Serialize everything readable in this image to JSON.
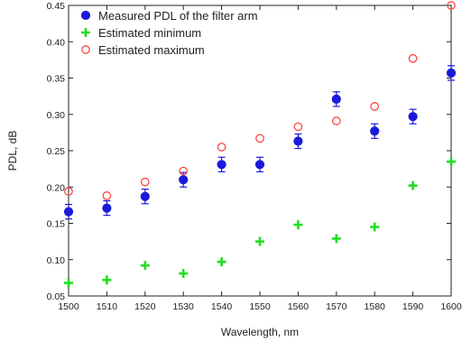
{
  "chart_data": {
    "type": "scatter",
    "title": "",
    "xlabel": "Wavelength, nm",
    "ylabel": "PDL, dB",
    "xlim": [
      1500,
      1600
    ],
    "ylim": [
      0.05,
      0.45
    ],
    "xticks": [
      "1500",
      "1510",
      "1520",
      "1530",
      "1540",
      "1550",
      "1560",
      "1570",
      "1580",
      "1590",
      "1600"
    ],
    "yticks": [
      "0.05",
      "0.10",
      "0.15",
      "0.20",
      "0.25",
      "0.30",
      "0.35",
      "0.40",
      "0.45"
    ],
    "grid": false,
    "legend_position": "top-left",
    "x": [
      1500,
      1510,
      1520,
      1530,
      1540,
      1550,
      1560,
      1570,
      1580,
      1590,
      1600
    ],
    "series": [
      {
        "name": "Measured PDL of the filter arm",
        "marker": "filled-circle",
        "color": "#1a1adb",
        "values": [
          0.166,
          0.171,
          0.187,
          0.21,
          0.231,
          0.231,
          0.263,
          0.321,
          0.277,
          0.297,
          0.357
        ],
        "error": [
          0.01,
          0.01,
          0.01,
          0.01,
          0.01,
          0.01,
          0.01,
          0.01,
          0.01,
          0.01,
          0.01
        ]
      },
      {
        "name": "Estimated minimum",
        "marker": "plus",
        "color": "#22dd22",
        "values": [
          0.068,
          0.072,
          0.092,
          0.081,
          0.097,
          0.125,
          0.148,
          0.129,
          0.145,
          0.202,
          0.235
        ]
      },
      {
        "name": "Estimated maximum",
        "marker": "open-circle",
        "color": "#ff4444",
        "values": [
          0.194,
          0.188,
          0.207,
          0.222,
          0.255,
          0.267,
          0.283,
          0.291,
          0.311,
          0.377,
          0.45
        ]
      }
    ]
  }
}
